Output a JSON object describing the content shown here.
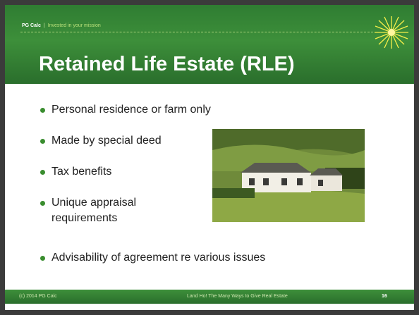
{
  "header": {
    "brand": "PG Calc",
    "separator": "|",
    "tagline": "Invested in your mission"
  },
  "title": "Retained Life Estate (RLE)",
  "bullets": [
    "Personal residence or farm only",
    "Made by special deed",
    "Tax benefits",
    "Unique appraisal requirements",
    "Advisability of agreement re various issues"
  ],
  "footer": {
    "copyright": "(c) 2014 PG Calc",
    "presentation": "Land Ho! The Many Ways to Give Real Estate",
    "page": "16"
  }
}
